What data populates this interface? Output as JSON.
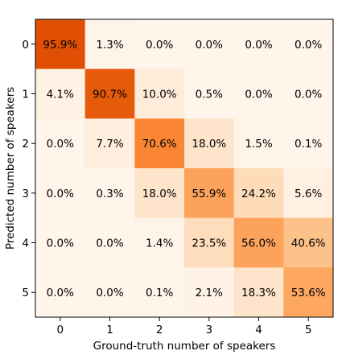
{
  "chart_data": {
    "type": "heatmap",
    "xlabel": "Ground-truth number of speakers",
    "ylabel": "Predicted number of speakers",
    "x_categories": [
      "0",
      "1",
      "2",
      "3",
      "4",
      "5"
    ],
    "y_categories": [
      "0",
      "1",
      "2",
      "3",
      "4",
      "5"
    ],
    "values": [
      [
        95.9,
        1.3,
        0.0,
        0.0,
        0.0,
        0.0
      ],
      [
        4.1,
        90.7,
        10.0,
        0.5,
        0.0,
        0.0
      ],
      [
        0.0,
        7.7,
        70.6,
        18.0,
        1.5,
        0.1
      ],
      [
        0.0,
        0.3,
        18.0,
        55.9,
        24.2,
        5.6
      ],
      [
        0.0,
        0.0,
        1.4,
        23.5,
        56.0,
        40.6
      ],
      [
        0.0,
        0.0,
        0.1,
        2.1,
        18.3,
        53.6
      ]
    ],
    "labels": [
      [
        "95.9%",
        "1.3%",
        "0.0%",
        "0.0%",
        "0.0%",
        "0.0%"
      ],
      [
        "4.1%",
        "90.7%",
        "10.0%",
        "0.5%",
        "0.0%",
        "0.0%"
      ],
      [
        "0.0%",
        "7.7%",
        "70.6%",
        "18.0%",
        "1.5%",
        "0.1%"
      ],
      [
        "0.0%",
        "0.3%",
        "18.0%",
        "55.9%",
        "24.2%",
        "5.6%"
      ],
      [
        "0.0%",
        "0.0%",
        "1.4%",
        "23.5%",
        "56.0%",
        "40.6%"
      ],
      [
        "0.0%",
        "0.0%",
        "0.1%",
        "2.1%",
        "18.3%",
        "53.6%"
      ]
    ],
    "value_range": [
      0,
      100
    ],
    "colormap": "Oranges",
    "grid": false
  }
}
